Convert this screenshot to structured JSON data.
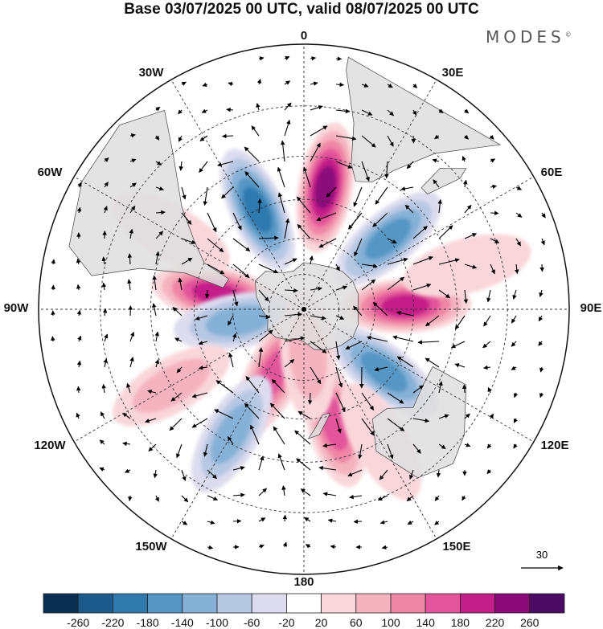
{
  "title": "Base 03/07/2025 00 UTC, valid 08/07/2025 00 UTC",
  "brand": {
    "text": "MODES",
    "mark": "©"
  },
  "longitude_labels": [
    "0",
    "30E",
    "60E",
    "90E",
    "120E",
    "150E",
    "180",
    "150W",
    "120W",
    "90W",
    "60W",
    "30W"
  ],
  "vector_reference": {
    "value": "30",
    "icon": "arrow-right-icon"
  },
  "colorbar": {
    "ticks": [
      "-260",
      "-220",
      "-180",
      "-140",
      "-100",
      "-60",
      "-20",
      "20",
      "60",
      "100",
      "140",
      "180",
      "220",
      "260"
    ],
    "colors": [
      "#0a2f52",
      "#1b5a8a",
      "#2f79ad",
      "#5596c4",
      "#86b1d6",
      "#b7c8e3",
      "#dddcee",
      "#ffffff",
      "#f9d6da",
      "#f5b3c0",
      "#ef86a6",
      "#e3559a",
      "#c41f88",
      "#8b0a7a",
      "#4b0a63"
    ]
  },
  "anomaly_centers": [
    {
      "lon": 10,
      "lat": -40,
      "value": 240
    },
    {
      "lon": -25,
      "lat": -45,
      "value": -200
    },
    {
      "lon": 50,
      "lat": -45,
      "value": -150
    },
    {
      "lon": 88,
      "lat": -48,
      "value": 200
    },
    {
      "lon": 128,
      "lat": -48,
      "value": -170
    },
    {
      "lon": 165,
      "lat": -42,
      "value": 140
    },
    {
      "lon": -80,
      "lat": -53,
      "value": 180
    },
    {
      "lon": -100,
      "lat": -62,
      "value": -110
    },
    {
      "lon": -155,
      "lat": -60,
      "value": 160
    },
    {
      "lon": -150,
      "lat": -33,
      "value": -120
    },
    {
      "lon": -120,
      "lat": -30,
      "value": 70
    },
    {
      "lon": 175,
      "lat": -70,
      "value": 60
    },
    {
      "lon": -60,
      "lat": -30,
      "value": 40
    },
    {
      "lon": 75,
      "lat": -25,
      "value": 50
    },
    {
      "lon": 150,
      "lat": -30,
      "value": 40
    }
  ]
}
